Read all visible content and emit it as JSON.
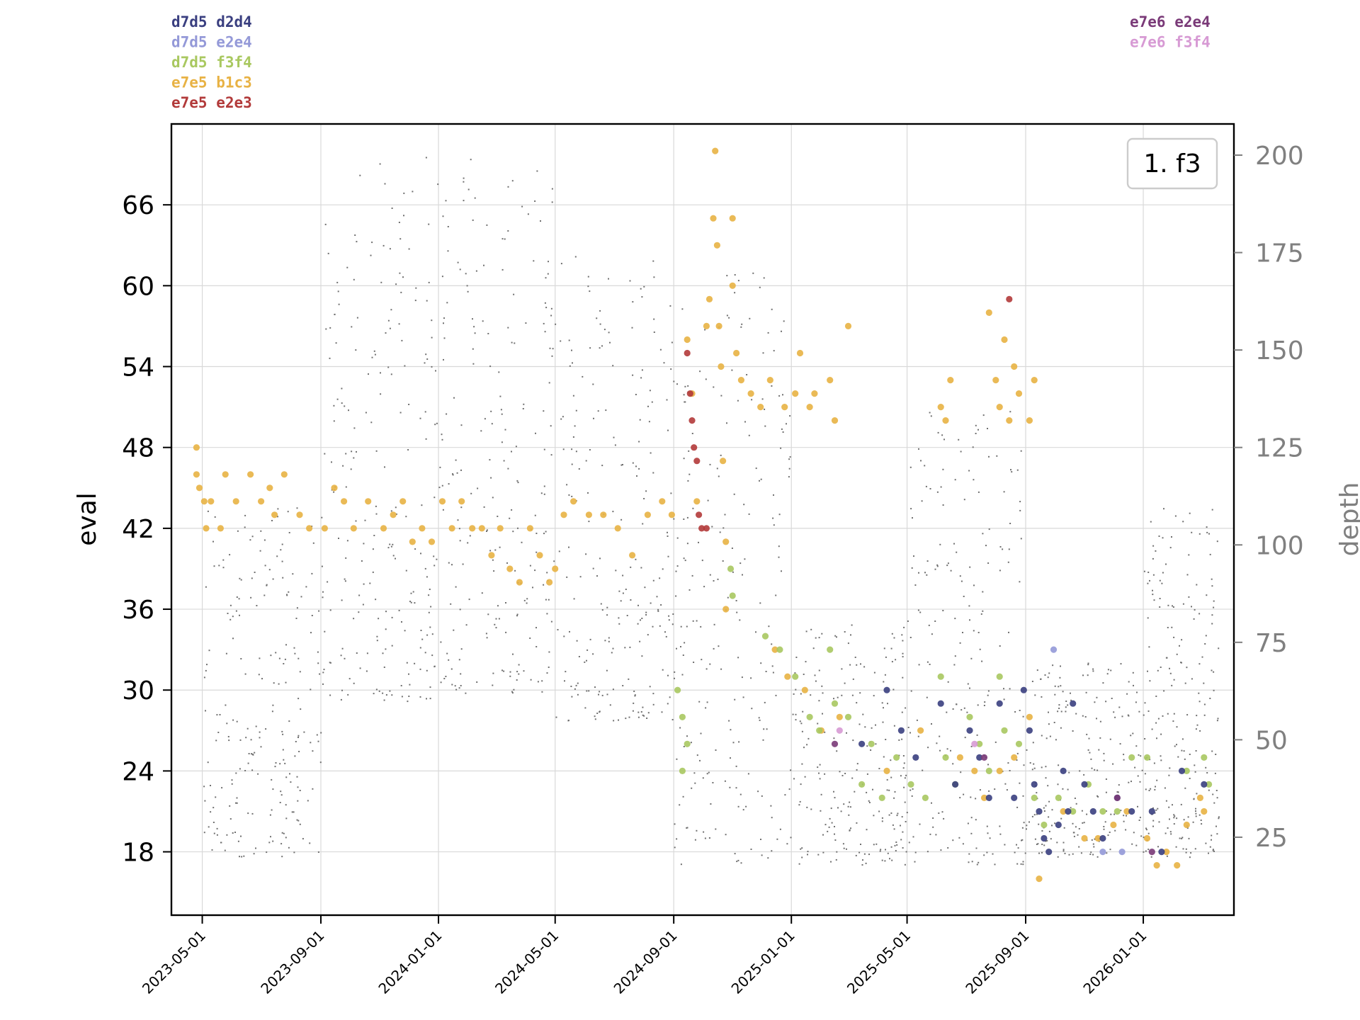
{
  "chart_data": {
    "type": "scatter",
    "title": "",
    "xlabel": "",
    "ylabel": "eval",
    "y2label": "depth",
    "annotation": "1. f3",
    "grid": true,
    "ylim": [
      13.3,
      72.0
    ],
    "y2lim": [
      5,
      208
    ],
    "xlim": [
      "2023-03-30",
      "2026-04-05"
    ],
    "x_ticks": [
      "2023-05-01",
      "2023-09-01",
      "2024-01-01",
      "2024-05-01",
      "2024-09-01",
      "2025-01-01",
      "2025-05-01",
      "2025-09-01",
      "2026-01-01"
    ],
    "y_ticks": [
      18,
      24,
      30,
      36,
      42,
      48,
      54,
      60,
      66
    ],
    "y2_ticks": [
      25,
      50,
      75,
      100,
      125,
      150,
      175,
      200
    ],
    "legend_left": [
      {
        "label": "d7d5  d2d4",
        "color": "#3a3f80"
      },
      {
        "label": "d7d5  e2e4",
        "color": "#9499d8"
      },
      {
        "label": "d7d5  f3f4",
        "color": "#a9c860"
      },
      {
        "label": "e7e5  b1c3",
        "color": "#e8b244"
      },
      {
        "label": "e7e5  e2e3",
        "color": "#b23a3a"
      }
    ],
    "legend_right": [
      {
        "label": "e7e6  e2e4",
        "color": "#7a3a78"
      },
      {
        "label": "e7e6  f3f4",
        "color": "#d79ad4"
      }
    ],
    "depth_series": {
      "name": "depth",
      "color": "#707070",
      "marker": "small dots",
      "clusters": [
        {
          "x": [
            "2023-05-01",
            "2023-09-01"
          ],
          "y": [
            20,
            110
          ]
        },
        {
          "x": [
            "2023-09-01",
            "2024-01-01"
          ],
          "y": [
            60,
            200
          ]
        },
        {
          "x": [
            "2024-01-01",
            "2024-05-01"
          ],
          "y": [
            62,
            200
          ]
        },
        {
          "x": [
            "2024-05-01",
            "2024-09-01"
          ],
          "y": [
            55,
            175
          ]
        },
        {
          "x": [
            "2024-09-01",
            "2025-01-01"
          ],
          "y": [
            18,
            170
          ]
        },
        {
          "x": [
            "2025-01-01",
            "2025-05-01"
          ],
          "y": [
            18,
            80
          ]
        },
        {
          "x": [
            "2025-05-01",
            "2025-09-01"
          ],
          "y": [
            18,
            135
          ]
        },
        {
          "x": [
            "2025-09-01",
            "2026-01-01"
          ],
          "y": [
            20,
            70
          ]
        },
        {
          "x": [
            "2026-01-01",
            "2026-03-20"
          ],
          "y": [
            20,
            110
          ]
        }
      ]
    },
    "series": [
      {
        "name": "e7e5  b1c3",
        "color": "#e8b244",
        "points": [
          [
            "2023-04-25",
            48
          ],
          [
            "2023-04-25",
            46
          ],
          [
            "2023-04-28",
            45
          ],
          [
            "2023-05-03",
            44
          ],
          [
            "2023-05-10",
            44
          ],
          [
            "2023-05-05",
            42
          ],
          [
            "2023-05-20",
            42
          ],
          [
            "2023-05-25",
            46
          ],
          [
            "2023-06-05",
            44
          ],
          [
            "2023-06-20",
            46
          ],
          [
            "2023-07-01",
            44
          ],
          [
            "2023-07-10",
            45
          ],
          [
            "2023-07-15",
            43
          ],
          [
            "2023-07-25",
            46
          ],
          [
            "2023-08-10",
            43
          ],
          [
            "2023-08-20",
            42
          ],
          [
            "2023-09-05",
            42
          ],
          [
            "2023-09-15",
            45
          ],
          [
            "2023-09-25",
            44
          ],
          [
            "2023-10-05",
            42
          ],
          [
            "2023-10-20",
            44
          ],
          [
            "2023-11-05",
            42
          ],
          [
            "2023-11-15",
            43
          ],
          [
            "2023-11-25",
            44
          ],
          [
            "2023-12-05",
            41
          ],
          [
            "2023-12-15",
            42
          ],
          [
            "2023-12-25",
            41
          ],
          [
            "2024-01-05",
            44
          ],
          [
            "2024-01-15",
            42
          ],
          [
            "2024-01-25",
            44
          ],
          [
            "2024-02-05",
            42
          ],
          [
            "2024-02-15",
            42
          ],
          [
            "2024-02-25",
            40
          ],
          [
            "2024-03-05",
            42
          ],
          [
            "2024-03-15",
            39
          ],
          [
            "2024-03-25",
            38
          ],
          [
            "2024-04-05",
            42
          ],
          [
            "2024-04-15",
            40
          ],
          [
            "2024-04-25",
            38
          ],
          [
            "2024-05-01",
            39
          ],
          [
            "2024-05-10",
            43
          ],
          [
            "2024-05-20",
            44
          ],
          [
            "2024-06-05",
            43
          ],
          [
            "2024-06-20",
            43
          ],
          [
            "2024-07-05",
            42
          ],
          [
            "2024-07-20",
            40
          ],
          [
            "2024-08-05",
            43
          ],
          [
            "2024-08-20",
            44
          ],
          [
            "2024-08-30",
            43
          ],
          [
            "2024-09-15",
            56
          ],
          [
            "2024-09-20",
            52
          ],
          [
            "2024-09-25",
            44
          ],
          [
            "2024-10-05",
            57
          ],
          [
            "2024-10-08",
            59
          ],
          [
            "2024-10-12",
            65
          ],
          [
            "2024-10-14",
            70
          ],
          [
            "2024-10-16",
            63
          ],
          [
            "2024-10-18",
            57
          ],
          [
            "2024-10-20",
            54
          ],
          [
            "2024-10-22",
            47
          ],
          [
            "2024-10-25",
            41
          ],
          [
            "2024-10-25",
            36
          ],
          [
            "2024-11-01",
            65
          ],
          [
            "2024-11-01",
            60
          ],
          [
            "2024-11-05",
            55
          ],
          [
            "2024-11-10",
            53
          ],
          [
            "2024-11-20",
            52
          ],
          [
            "2024-11-30",
            51
          ],
          [
            "2024-12-10",
            53
          ],
          [
            "2024-12-25",
            51
          ],
          [
            "2025-01-05",
            52
          ],
          [
            "2025-01-10",
            55
          ],
          [
            "2025-01-20",
            51
          ],
          [
            "2025-01-25",
            52
          ],
          [
            "2025-02-10",
            53
          ],
          [
            "2025-02-15",
            50
          ],
          [
            "2025-03-01",
            57
          ],
          [
            "2025-06-05",
            51
          ],
          [
            "2025-06-10",
            50
          ],
          [
            "2025-06-15",
            53
          ],
          [
            "2025-07-25",
            58
          ],
          [
            "2025-08-01",
            53
          ],
          [
            "2025-08-05",
            51
          ],
          [
            "2025-08-10",
            56
          ],
          [
            "2025-08-15",
            50
          ],
          [
            "2025-08-20",
            54
          ],
          [
            "2025-08-25",
            52
          ],
          [
            "2025-09-05",
            50
          ],
          [
            "2025-09-10",
            53
          ],
          [
            "2024-12-15",
            33
          ],
          [
            "2024-12-28",
            31
          ],
          [
            "2025-01-15",
            30
          ],
          [
            "2025-02-01",
            27
          ],
          [
            "2025-02-20",
            28
          ],
          [
            "2025-04-10",
            24
          ],
          [
            "2025-05-15",
            27
          ],
          [
            "2025-06-25",
            25
          ],
          [
            "2025-07-10",
            24
          ],
          [
            "2025-07-20",
            22
          ],
          [
            "2025-08-05",
            24
          ],
          [
            "2025-08-20",
            25
          ],
          [
            "2025-09-05",
            28
          ],
          [
            "2025-09-15",
            16
          ],
          [
            "2025-10-10",
            21
          ],
          [
            "2025-11-01",
            19
          ],
          [
            "2025-11-15",
            19
          ],
          [
            "2025-12-01",
            20
          ],
          [
            "2025-12-15",
            21
          ],
          [
            "2026-01-05",
            19
          ],
          [
            "2026-01-15",
            17
          ],
          [
            "2026-01-25",
            18
          ],
          [
            "2026-02-05",
            17
          ],
          [
            "2026-02-15",
            20
          ],
          [
            "2026-03-01",
            22
          ],
          [
            "2026-03-05",
            21
          ]
        ]
      },
      {
        "name": "d7d5  f3f4",
        "color": "#a9c860",
        "points": [
          [
            "2024-09-05",
            30
          ],
          [
            "2024-09-10",
            28
          ],
          [
            "2024-09-10",
            24
          ],
          [
            "2024-09-15",
            26
          ],
          [
            "2024-10-30",
            39
          ],
          [
            "2024-11-01",
            37
          ],
          [
            "2024-12-05",
            34
          ],
          [
            "2024-12-20",
            33
          ],
          [
            "2025-01-05",
            31
          ],
          [
            "2025-01-20",
            28
          ],
          [
            "2025-01-30",
            27
          ],
          [
            "2025-02-10",
            33
          ],
          [
            "2025-02-15",
            29
          ],
          [
            "2025-03-01",
            28
          ],
          [
            "2025-03-15",
            23
          ],
          [
            "2025-03-25",
            26
          ],
          [
            "2025-04-05",
            22
          ],
          [
            "2025-04-20",
            25
          ],
          [
            "2025-05-05",
            23
          ],
          [
            "2025-05-20",
            22
          ],
          [
            "2025-06-05",
            31
          ],
          [
            "2025-06-10",
            25
          ],
          [
            "2025-06-20",
            23
          ],
          [
            "2025-07-05",
            28
          ],
          [
            "2025-07-15",
            26
          ],
          [
            "2025-07-25",
            24
          ],
          [
            "2025-08-05",
            31
          ],
          [
            "2025-08-10",
            27
          ],
          [
            "2025-08-25",
            26
          ],
          [
            "2025-09-10",
            22
          ],
          [
            "2025-09-20",
            20
          ],
          [
            "2025-10-05",
            22
          ],
          [
            "2025-10-20",
            21
          ],
          [
            "2025-11-05",
            23
          ],
          [
            "2025-11-20",
            21
          ],
          [
            "2025-12-05",
            21
          ],
          [
            "2025-12-20",
            25
          ],
          [
            "2026-01-05",
            25
          ],
          [
            "2026-02-15",
            24
          ],
          [
            "2026-03-05",
            25
          ],
          [
            "2026-03-10",
            23
          ]
        ]
      },
      {
        "name": "d7d5  d2d4",
        "color": "#3a3f80",
        "points": [
          [
            "2025-03-15",
            26
          ],
          [
            "2025-04-10",
            30
          ],
          [
            "2025-04-25",
            27
          ],
          [
            "2025-05-10",
            25
          ],
          [
            "2025-06-05",
            29
          ],
          [
            "2025-06-20",
            23
          ],
          [
            "2025-07-05",
            27
          ],
          [
            "2025-07-15",
            25
          ],
          [
            "2025-07-25",
            22
          ],
          [
            "2025-08-05",
            29
          ],
          [
            "2025-08-20",
            22
          ],
          [
            "2025-08-30",
            30
          ],
          [
            "2025-09-05",
            27
          ],
          [
            "2025-09-10",
            23
          ],
          [
            "2025-09-15",
            21
          ],
          [
            "2025-09-20",
            19
          ],
          [
            "2025-09-25",
            18
          ],
          [
            "2025-10-05",
            20
          ],
          [
            "2025-10-10",
            24
          ],
          [
            "2025-10-15",
            21
          ],
          [
            "2025-10-20",
            29
          ],
          [
            "2025-11-01",
            23
          ],
          [
            "2025-11-10",
            21
          ],
          [
            "2025-11-20",
            19
          ],
          [
            "2025-12-05",
            22
          ],
          [
            "2025-12-20",
            21
          ],
          [
            "2026-01-10",
            21
          ],
          [
            "2026-01-20",
            18
          ],
          [
            "2026-02-10",
            24
          ],
          [
            "2026-03-05",
            23
          ]
        ]
      },
      {
        "name": "e7e5  e2e3",
        "color": "#b23a3a",
        "points": [
          [
            "2024-09-15",
            55
          ],
          [
            "2024-09-18",
            52
          ],
          [
            "2024-09-20",
            50
          ],
          [
            "2024-09-22",
            48
          ],
          [
            "2024-09-25",
            47
          ],
          [
            "2024-09-27",
            43
          ],
          [
            "2024-09-30",
            42
          ],
          [
            "2024-10-05",
            42
          ],
          [
            "2025-08-15",
            59
          ]
        ]
      },
      {
        "name": "d7d5  e2e4",
        "color": "#9499d8",
        "points": [
          [
            "2025-09-30",
            33
          ],
          [
            "2025-11-20",
            18
          ],
          [
            "2025-12-10",
            18
          ]
        ]
      },
      {
        "name": "e7e6  e2e4",
        "color": "#7a3a78",
        "points": [
          [
            "2025-02-15",
            26
          ],
          [
            "2025-07-20",
            25
          ],
          [
            "2025-12-05",
            22
          ],
          [
            "2026-01-10",
            18
          ]
        ]
      },
      {
        "name": "e7e6  f3f4",
        "color": "#d79ad4",
        "points": [
          [
            "2025-02-20",
            27
          ],
          [
            "2025-07-10",
            26
          ]
        ]
      }
    ]
  }
}
